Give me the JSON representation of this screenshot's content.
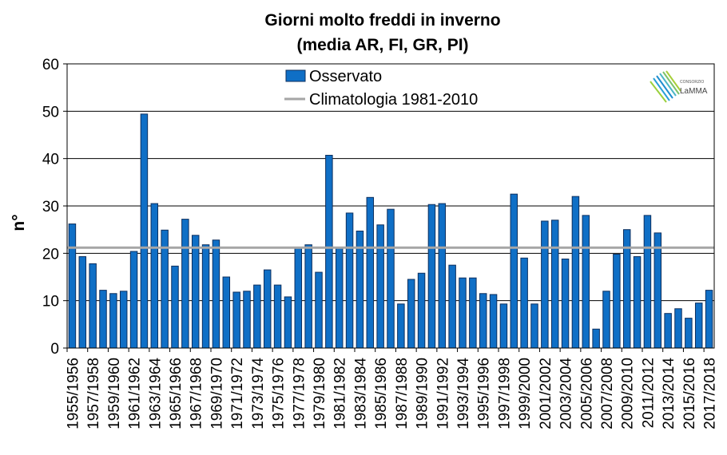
{
  "chart_data": {
    "type": "bar",
    "title": [
      "Giorni molto freddi in inverno",
      "(media AR, FI, GR, PI)"
    ],
    "ylabel": "n°",
    "xlabel": "",
    "ylim": [
      0,
      60
    ],
    "yticks": [
      0,
      10,
      20,
      30,
      40,
      50,
      60
    ],
    "grid": true,
    "legend_position": "top",
    "bar_color": "#0f6fc6",
    "bar_edge_color": "#0d2f5e",
    "line_color": "#a6a6a6",
    "x_tick_labels": [
      "1955/1956",
      "1957/1958",
      "1959/1960",
      "1961/1962",
      "1963/1964",
      "1965/1966",
      "1967/1968",
      "1969/1970",
      "1971/1972",
      "1973/1974",
      "1975/1976",
      "1977/1978",
      "1979/1980",
      "1981/1982",
      "1983/1984",
      "1985/1986",
      "1987/1988",
      "1989/1990",
      "1991/1992",
      "1993/1994",
      "1995/1996",
      "1997/1998",
      "1999/2000",
      "2001/2002",
      "2003/2004",
      "2005/2006",
      "2007/2008",
      "2009/2010",
      "2011/2012",
      "2013/2014",
      "2015/2016",
      "2017/2018"
    ],
    "series": [
      {
        "name": "Osservato",
        "kind": "bar",
        "values": [
          26.2,
          19.3,
          17.8,
          12.2,
          11.5,
          12.0,
          20.4,
          49.4,
          30.5,
          24.9,
          17.3,
          27.2,
          23.8,
          21.8,
          22.8,
          15.0,
          11.8,
          12.0,
          13.3,
          16.5,
          13.3,
          10.8,
          21.2,
          21.8,
          16.0,
          40.7,
          21.1,
          28.5,
          24.7,
          31.8,
          26.0,
          29.3,
          9.3,
          14.5,
          15.8,
          30.3,
          30.5,
          17.5,
          14.8,
          14.8,
          11.5,
          11.3,
          9.3,
          32.5,
          19.0,
          9.3,
          26.8,
          27.0,
          18.8,
          32.0,
          28.0,
          4.0,
          12.0,
          19.8,
          25.0,
          19.3,
          28.0,
          24.3,
          7.3,
          8.3,
          6.3,
          9.5,
          12.2
        ]
      },
      {
        "name": "Climatologia 1981-2010",
        "kind": "line",
        "value": 21.2
      }
    ]
  },
  "logo": {
    "small_text": "CONSORZIO",
    "main_text": "LaMMA"
  }
}
